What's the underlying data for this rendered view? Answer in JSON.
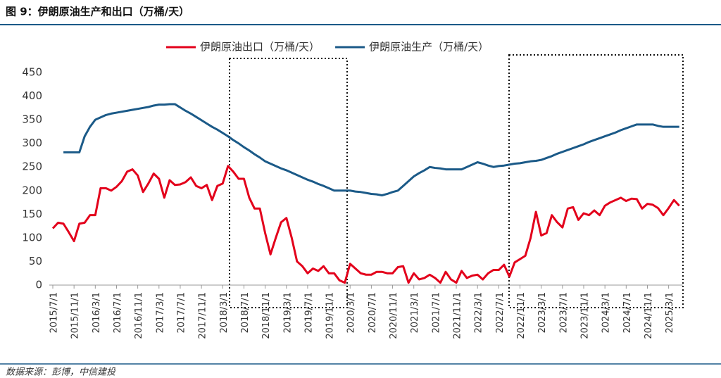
{
  "chart_data": {
    "type": "line",
    "title": "图 9：伊朗原油生产和出口（万桶/天）",
    "source": "数据来源：彭博，中信建投",
    "categories": [
      "2015/7/1",
      null,
      null,
      null,
      "2015/11/1",
      null,
      null,
      null,
      "2016/3/1",
      null,
      null,
      null,
      "2016/7/1",
      null,
      null,
      null,
      "2016/11/1",
      null,
      null,
      null,
      "2017/3/1",
      null,
      null,
      null,
      "2017/7/1",
      null,
      null,
      null,
      "2017/11/1",
      null,
      null,
      null,
      "2018/3/1",
      null,
      null,
      null,
      "2018/7/1",
      null,
      null,
      null,
      "2018/11/1",
      null,
      null,
      null,
      "2019/3/1",
      null,
      null,
      null,
      "2019/7/1",
      null,
      null,
      null,
      "2019/11/1",
      null,
      null,
      null,
      "2020/3/1",
      null,
      null,
      null,
      "2020/7/1",
      null,
      null,
      null,
      "2020/11/1",
      null,
      null,
      null,
      "2021/3/1",
      null,
      null,
      null,
      "2021/7/1",
      null,
      null,
      null,
      "2021/11/1",
      null,
      null,
      null,
      "2022/3/1",
      null,
      null,
      null,
      "2022/7/1",
      null,
      null,
      null,
      "2022/11/1",
      null,
      null,
      null,
      "2023/3/1",
      null,
      null,
      null,
      "2023/7/1",
      null,
      null,
      null,
      "2023/11/1",
      null,
      null,
      null,
      "2024/3/1",
      null,
      null,
      null,
      "2024/7/1",
      null,
      null,
      null,
      "2024/11/1",
      null,
      null,
      null,
      "2025/3/1",
      null,
      null
    ],
    "series": [
      {
        "name": "伊朗原油出口（万桶/天）",
        "color": "#e3001b",
        "values": [
          120,
          132,
          130,
          112,
          93,
          130,
          132,
          148,
          148,
          205,
          205,
          200,
          208,
          220,
          240,
          245,
          232,
          197,
          215,
          236,
          225,
          185,
          222,
          212,
          213,
          218,
          228,
          210,
          205,
          212,
          180,
          210,
          215,
          252,
          240,
          225,
          225,
          185,
          162,
          162,
          110,
          65,
          100,
          133,
          142,
          100,
          50,
          40,
          25,
          35,
          30,
          40,
          25,
          25,
          10,
          5,
          45,
          35,
          25,
          22,
          22,
          28,
          28,
          25,
          25,
          38,
          40,
          5,
          25,
          12,
          15,
          22,
          15,
          5,
          28,
          12,
          5,
          30,
          15,
          20,
          22,
          12,
          25,
          32,
          32,
          43,
          18,
          48,
          55,
          62,
          100,
          155,
          105,
          110,
          148,
          133,
          122,
          162,
          165,
          138,
          152,
          148,
          158,
          148,
          168,
          175,
          180,
          185,
          178,
          183,
          182,
          162,
          172,
          170,
          163,
          148,
          163,
          180,
          168
        ]
      },
      {
        "name": "伊朗原油生产（万桶/天）",
        "color": "#1b5a88",
        "values": [
          null,
          null,
          281,
          281,
          281,
          281,
          315,
          335,
          350,
          355,
          360,
          363,
          365,
          367,
          369,
          371,
          373,
          375,
          377,
          380,
          382,
          382,
          383,
          383,
          376,
          369,
          363,
          356,
          349,
          342,
          335,
          329,
          322,
          315,
          307,
          300,
          292,
          285,
          277,
          270,
          262,
          257,
          252,
          247,
          243,
          238,
          233,
          228,
          223,
          219,
          214,
          210,
          205,
          200,
          200,
          200,
          200,
          198,
          197,
          195,
          193,
          192,
          190,
          193,
          197,
          200,
          210,
          220,
          230,
          237,
          243,
          250,
          248,
          247,
          245,
          245,
          245,
          245,
          250,
          255,
          260,
          257,
          253,
          250,
          252,
          253,
          255,
          257,
          258,
          260,
          262,
          263,
          265,
          269,
          273,
          278,
          282,
          286,
          290,
          294,
          298,
          303,
          307,
          311,
          315,
          319,
          323,
          328,
          332,
          336,
          340,
          340,
          340,
          340,
          337,
          335,
          335,
          335,
          335
        ]
      }
    ],
    "ylim": [
      0,
      450
    ],
    "yticks": [
      0,
      50,
      100,
      150,
      200,
      250,
      300,
      350,
      400,
      450
    ],
    "legend": "top",
    "grid": false
  }
}
